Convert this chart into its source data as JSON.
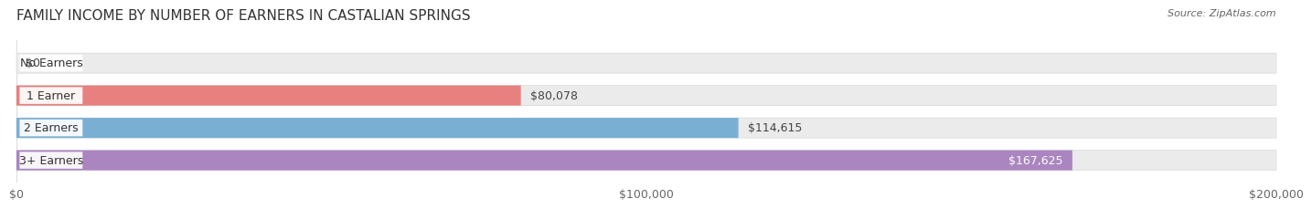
{
  "title": "FAMILY INCOME BY NUMBER OF EARNERS IN CASTALIAN SPRINGS",
  "source": "Source: ZipAtlas.com",
  "categories": [
    "No Earners",
    "1 Earner",
    "2 Earners",
    "3+ Earners"
  ],
  "values": [
    0,
    80078,
    114615,
    167625
  ],
  "labels": [
    "$0",
    "$80,078",
    "$114,615",
    "$167,625"
  ],
  "bar_colors": [
    "#f5c98a",
    "#e88080",
    "#7aafd4",
    "#aa85c0"
  ],
  "label_badge_colors": [
    "#e8a84a",
    "#cc5555",
    "#5588bb",
    "#8855aa"
  ],
  "background_color": "#ffffff",
  "bar_bg_color": "#ebebeb",
  "xlim": [
    0,
    200000
  ],
  "xticks": [
    0,
    100000,
    200000
  ],
  "xticklabels": [
    "$0",
    "$100,000",
    "$200,000"
  ],
  "title_fontsize": 11,
  "label_fontsize": 9,
  "tick_fontsize": 9,
  "figsize": [
    14.06,
    2.33
  ],
  "dpi": 100
}
